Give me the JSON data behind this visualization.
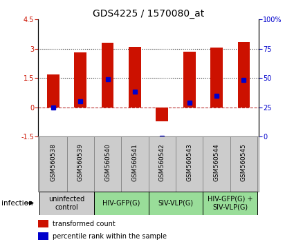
{
  "title": "GDS4225 / 1570080_at",
  "samples": [
    "GSM560538",
    "GSM560539",
    "GSM560540",
    "GSM560541",
    "GSM560542",
    "GSM560543",
    "GSM560544",
    "GSM560545"
  ],
  "bar_values": [
    1.7,
    2.8,
    3.3,
    3.1,
    -0.7,
    2.85,
    3.05,
    3.35
  ],
  "percentile_values": [
    0.0,
    0.3,
    1.45,
    0.8,
    -1.55,
    0.25,
    0.6,
    1.4
  ],
  "bar_color": "#cc1100",
  "percentile_color": "#0000cc",
  "ylim": [
    -1.5,
    4.5
  ],
  "y2lim": [
    0,
    100
  ],
  "yticks": [
    -1.5,
    0.0,
    1.5,
    3.0,
    4.5
  ],
  "ytick_labels": [
    "-1.5",
    "0",
    "1.5",
    "3",
    "4.5"
  ],
  "y2ticks": [
    0,
    25,
    50,
    75,
    100
  ],
  "y2tick_labels": [
    "0",
    "25",
    "50",
    "75",
    "100%"
  ],
  "groups": [
    {
      "label": "uninfected\ncontrol",
      "start": 0,
      "end": 2,
      "color": "#cccccc"
    },
    {
      "label": "HIV-GFP(G)",
      "start": 2,
      "end": 4,
      "color": "#99dd99"
    },
    {
      "label": "SIV-VLP(G)",
      "start": 4,
      "end": 6,
      "color": "#99dd99"
    },
    {
      "label": "HIV-GFP(G) +\nSIV-VLP(G)",
      "start": 6,
      "end": 8,
      "color": "#99dd99"
    }
  ],
  "legend_items": [
    {
      "label": "transformed count",
      "color": "#cc1100"
    },
    {
      "label": "percentile rank within the sample",
      "color": "#0000cc"
    }
  ],
  "infection_label": "infection",
  "bar_width": 0.45,
  "title_fontsize": 10,
  "tick_fontsize": 7,
  "sample_label_fontsize": 6.5,
  "group_fontsize": 7,
  "legend_fontsize": 7
}
